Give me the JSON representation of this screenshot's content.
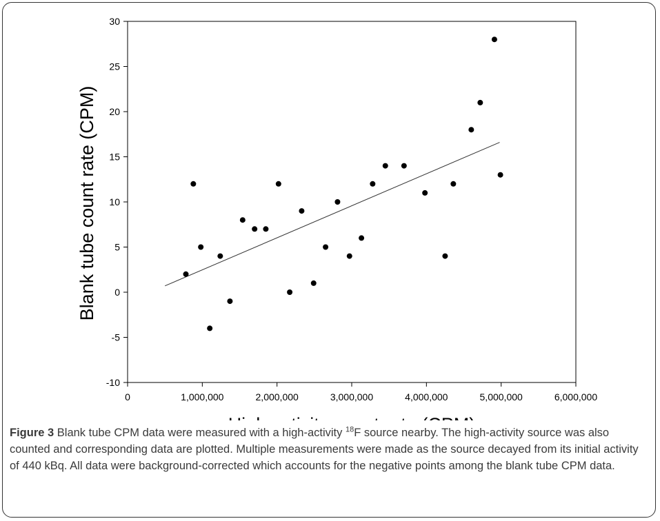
{
  "chart_data": {
    "type": "scatter",
    "xlabel": "High activity count rate (CPM)",
    "ylabel": "Blank tube count rate (CPM)",
    "xlim": [
      0,
      6000000
    ],
    "ylim": [
      -10,
      30
    ],
    "x_ticks": [
      "0",
      "1,000,000",
      "2,000,000",
      "3,000,000",
      "4,000,000",
      "5,000,000",
      "6,000,000"
    ],
    "y_ticks": [
      "-10",
      "-5",
      "0",
      "5",
      "10",
      "15",
      "20",
      "25",
      "30"
    ],
    "x_tick_values": [
      0,
      1000000,
      2000000,
      3000000,
      4000000,
      5000000,
      6000000
    ],
    "y_tick_values": [
      -10,
      -5,
      0,
      5,
      10,
      15,
      20,
      25,
      30
    ],
    "points": [
      {
        "x": 780000,
        "y": 2
      },
      {
        "x": 880000,
        "y": 12
      },
      {
        "x": 980000,
        "y": 5
      },
      {
        "x": 1100000,
        "y": -4
      },
      {
        "x": 1240000,
        "y": 4
      },
      {
        "x": 1370000,
        "y": -1
      },
      {
        "x": 1540000,
        "y": 8
      },
      {
        "x": 1700000,
        "y": 7
      },
      {
        "x": 1850000,
        "y": 7
      },
      {
        "x": 2020000,
        "y": 12
      },
      {
        "x": 2170000,
        "y": 0
      },
      {
        "x": 2330000,
        "y": 9
      },
      {
        "x": 2490000,
        "y": 1
      },
      {
        "x": 2650000,
        "y": 5
      },
      {
        "x": 2810000,
        "y": 10
      },
      {
        "x": 2970000,
        "y": 4
      },
      {
        "x": 3130000,
        "y": 6
      },
      {
        "x": 3280000,
        "y": 12
      },
      {
        "x": 3450000,
        "y": 14
      },
      {
        "x": 3700000,
        "y": 14
      },
      {
        "x": 3980000,
        "y": 11
      },
      {
        "x": 4250000,
        "y": 4
      },
      {
        "x": 4360000,
        "y": 12
      },
      {
        "x": 4600000,
        "y": 18
      },
      {
        "x": 4720000,
        "y": 21
      },
      {
        "x": 4910000,
        "y": 28
      },
      {
        "x": 4990000,
        "y": 13
      }
    ],
    "trend_line": {
      "x": [
        500000,
        4980000
      ],
      "y": [
        0.7,
        16.6
      ]
    },
    "grid": false,
    "legend": "none"
  },
  "caption": {
    "label": "Figure 3",
    "text_before_sup": " Blank tube CPM data were measured with a high-activity ",
    "sup": "18",
    "text_after_sup": "F source nearby. The high-activity source was also counted and corresponding data are plotted. Multiple measurements were made as the source decayed from its initial activity of 440 kBq. All data were background-corrected which accounts for the negative points among the blank tube CPM data."
  },
  "colors": {
    "points": "#000000",
    "line": "#333333",
    "frame": "#333333",
    "caption_text": "#3a3a3a"
  }
}
